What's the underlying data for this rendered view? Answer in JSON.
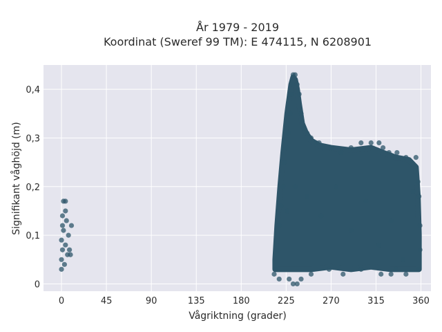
{
  "chart_data": {
    "type": "scatter",
    "title_lines": [
      "År 1979 - 2019",
      "Koordinat (Sweref 99 TM): E 474115, N 6208901"
    ],
    "xlabel": "Vågriktning (grader)",
    "ylabel": "Signifikant våghöjd (m)",
    "xlim": [
      -18,
      370
    ],
    "ylim": [
      -0.015,
      0.45
    ],
    "x_ticks": [
      0,
      45,
      90,
      135,
      180,
      225,
      270,
      315,
      360
    ],
    "x_tick_labels": [
      "0",
      "45",
      "90",
      "135",
      "180",
      "225",
      "270",
      "315",
      "360"
    ],
    "y_ticks": [
      0,
      0.1,
      0.2,
      0.3,
      0.4
    ],
    "y_tick_labels": [
      "0",
      "0,1",
      "0,2",
      "0,3",
      "0,4"
    ],
    "grid": true,
    "legend": "none",
    "plot_background": "#e5e5ee",
    "marker_color": "#2e5569",
    "series": [
      {
        "points": [
          [
            0,
            0.03
          ],
          [
            0,
            0.05
          ],
          [
            1,
            0.07
          ],
          [
            0,
            0.09
          ],
          [
            2,
            0.11
          ],
          [
            1,
            0.14
          ],
          [
            2,
            0.17
          ],
          [
            4,
            0.17
          ],
          [
            4,
            0.15
          ],
          [
            5,
            0.13
          ],
          [
            4,
            0.08
          ],
          [
            6,
            0.06
          ],
          [
            7,
            0.1
          ],
          [
            8,
            0.07
          ],
          [
            10,
            0.12
          ],
          [
            9,
            0.06
          ],
          [
            3,
            0.04
          ],
          [
            1,
            0.12
          ],
          [
            213,
            0.02
          ],
          [
            215,
            0.03
          ],
          [
            217,
            0.07
          ],
          [
            218,
            0.12
          ],
          [
            220,
            0.16
          ],
          [
            222,
            0.2
          ],
          [
            223,
            0.25
          ],
          [
            225,
            0.28
          ],
          [
            227,
            0.31
          ],
          [
            229,
            0.35
          ],
          [
            230,
            0.39
          ],
          [
            231,
            0.41
          ],
          [
            232,
            0.43
          ],
          [
            234,
            0.43
          ],
          [
            236,
            0.41
          ],
          [
            238,
            0.39
          ],
          [
            240,
            0.35
          ],
          [
            243,
            0.32
          ],
          [
            246,
            0.31
          ],
          [
            250,
            0.3
          ],
          [
            255,
            0.29
          ],
          [
            258,
            0.29
          ],
          [
            262,
            0.28
          ],
          [
            270,
            0.28
          ],
          [
            280,
            0.27
          ],
          [
            290,
            0.28
          ],
          [
            300,
            0.29
          ],
          [
            310,
            0.29
          ],
          [
            318,
            0.29
          ],
          [
            322,
            0.28
          ],
          [
            328,
            0.27
          ],
          [
            336,
            0.27
          ],
          [
            345,
            0.26
          ],
          [
            355,
            0.26
          ],
          [
            357,
            0.21
          ],
          [
            358,
            0.18
          ],
          [
            359,
            0.12
          ],
          [
            359,
            0.07
          ],
          [
            358,
            0.03
          ],
          [
            345,
            0.02
          ],
          [
            335,
            0.03
          ],
          [
            330,
            0.02
          ],
          [
            320,
            0.02
          ],
          [
            300,
            0.03
          ],
          [
            282,
            0.02
          ],
          [
            268,
            0.03
          ],
          [
            250,
            0.02
          ],
          [
            240,
            0.01
          ],
          [
            236,
            0.0
          ],
          [
            232,
            0.0
          ],
          [
            228,
            0.01
          ],
          [
            218,
            0.01
          ],
          [
            226,
            0.15
          ],
          [
            234,
            0.2
          ],
          [
            246,
            0.18
          ],
          [
            260,
            0.14
          ],
          [
            275,
            0.2
          ],
          [
            290,
            0.11
          ],
          [
            305,
            0.17
          ],
          [
            318,
            0.08
          ],
          [
            330,
            0.13
          ],
          [
            342,
            0.05
          ],
          [
            352,
            0.19
          ]
        ]
      }
    ],
    "filled_regions": [
      {
        "upper_envelope": [
          [
            214,
            0.05
          ],
          [
            216,
            0.12
          ],
          [
            219,
            0.2
          ],
          [
            222,
            0.27
          ],
          [
            224,
            0.31
          ],
          [
            226,
            0.35
          ],
          [
            228,
            0.38
          ],
          [
            230,
            0.41
          ],
          [
            232,
            0.425
          ],
          [
            234,
            0.42
          ],
          [
            236,
            0.4
          ],
          [
            238,
            0.37
          ],
          [
            241,
            0.33
          ],
          [
            245,
            0.31
          ],
          [
            250,
            0.295
          ],
          [
            258,
            0.285
          ],
          [
            270,
            0.28
          ],
          [
            290,
            0.275
          ],
          [
            310,
            0.28
          ],
          [
            322,
            0.27
          ],
          [
            335,
            0.26
          ],
          [
            348,
            0.255
          ],
          [
            355,
            0.24
          ],
          [
            357,
            0.18
          ],
          [
            358,
            0.1
          ],
          [
            358,
            0.05
          ]
        ],
        "lower_envelope": [
          [
            358,
            0.03
          ],
          [
            345,
            0.03
          ],
          [
            330,
            0.03
          ],
          [
            310,
            0.035
          ],
          [
            290,
            0.03
          ],
          [
            270,
            0.035
          ],
          [
            250,
            0.03
          ],
          [
            235,
            0.03
          ],
          [
            224,
            0.03
          ],
          [
            214,
            0.03
          ]
        ]
      }
    ]
  }
}
